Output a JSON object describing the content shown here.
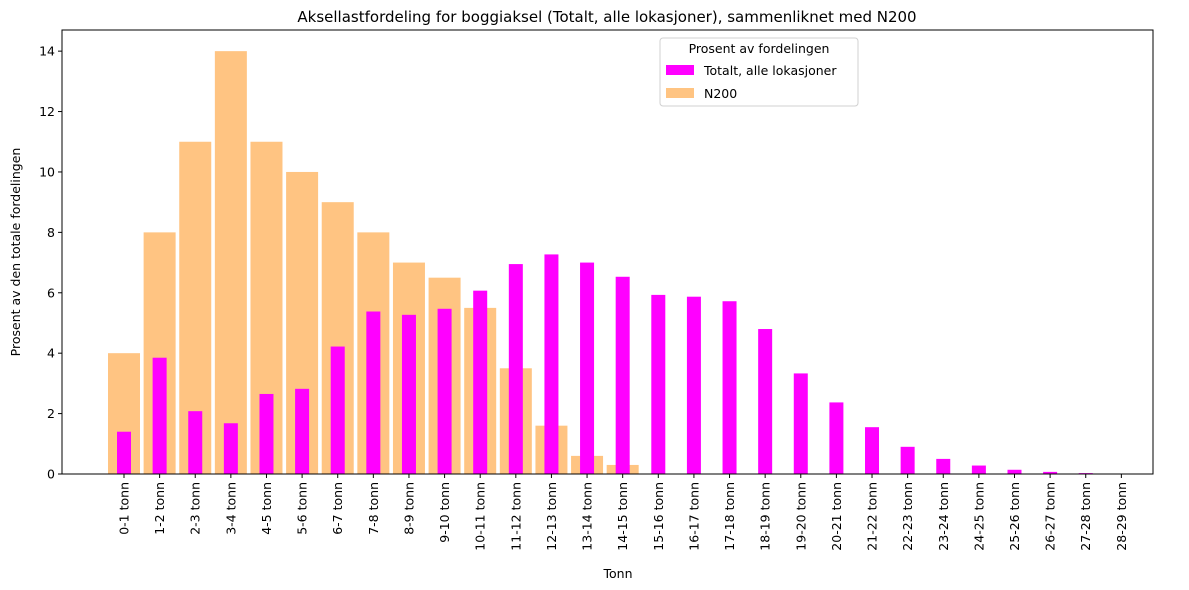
{
  "chart_data": {
    "type": "bar",
    "title": "Aksellastfordeling for boggiaksel (Totalt, alle lokasjoner), sammenliknet med N200",
    "xlabel": "Tonn",
    "ylabel": "Prosent av den totale fordelingen",
    "ylim": [
      0,
      14.7
    ],
    "yticks": [
      "0",
      "2",
      "4",
      "6",
      "8",
      "10",
      "12",
      "14"
    ],
    "grid": false,
    "legend": {
      "title": "Prosent av fordelingen",
      "placement": "top-center"
    },
    "categories": [
      "0-1 tonn",
      "1-2 tonn",
      "2-3 tonn",
      "3-4 tonn",
      "4-5 tonn",
      "5-6 tonn",
      "6-7 tonn",
      "7-8 tonn",
      "8-9 tonn",
      "9-10 tonn",
      "10-11 tonn",
      "11-12 tonn",
      "12-13 tonn",
      "13-14 tonn",
      "14-15 tonn",
      "15-16 tonn",
      "16-17 tonn",
      "17-18 tonn",
      "18-19 tonn",
      "19-20 tonn",
      "20-21 tonn",
      "21-22 tonn",
      "22-23 tonn",
      "23-24 tonn",
      "24-25 tonn",
      "25-26 tonn",
      "26-27 tonn",
      "27-28 tonn",
      "28-29 tonn"
    ],
    "series": [
      {
        "name": "N200",
        "color": "#ffc482",
        "values": [
          4,
          8,
          11,
          14,
          11,
          10,
          9,
          8,
          7,
          6.5,
          5.5,
          3.5,
          1.6,
          0.6,
          0.3,
          0,
          0,
          0,
          0,
          0,
          0,
          0,
          0,
          0,
          0,
          0,
          0,
          0,
          0
        ]
      },
      {
        "name": "Totalt, alle lokasjoner",
        "color": "#ff00ff",
        "values": [
          1.4,
          3.85,
          2.08,
          1.68,
          2.65,
          2.82,
          4.22,
          5.38,
          5.27,
          5.47,
          6.07,
          6.95,
          7.27,
          7.0,
          6.53,
          5.93,
          5.87,
          5.72,
          4.8,
          3.33,
          2.37,
          1.55,
          0.9,
          0.5,
          0.28,
          0.14,
          0.07,
          0.03,
          0.01
        ]
      }
    ]
  }
}
